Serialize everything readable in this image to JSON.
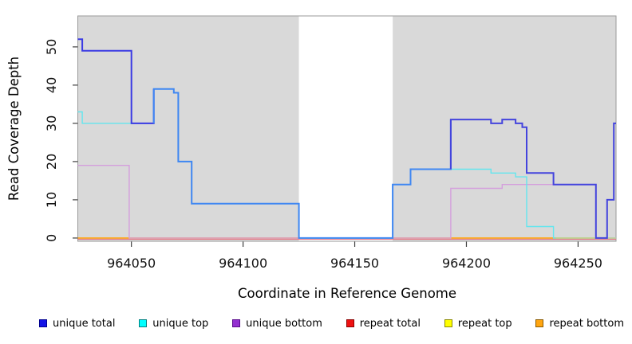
{
  "chart_data": {
    "type": "line",
    "subtype": "step-coverage",
    "title": "",
    "xlabel": "Coordinate in Reference Genome",
    "ylabel": "Read Coverage Depth",
    "xlim": [
      964026,
      964267
    ],
    "ylim": [
      -0.85,
      58.1
    ],
    "x_ticks": [
      964050,
      964100,
      964150,
      964200,
      964250
    ],
    "y_ticks": [
      0,
      10,
      20,
      30,
      40,
      50
    ],
    "grid": false,
    "plot_bg": "#d9d9d9",
    "plot_border": "#9a9a9a",
    "gap_region": {
      "from": 964125,
      "to": 964167,
      "color": "#ffffff"
    },
    "series": [
      {
        "name": "repeat total",
        "line_color": "#e46a78",
        "width": 1.2,
        "y_offset": 1.4,
        "points": [
          [
            964026,
            0
          ],
          [
            964267,
            0
          ]
        ]
      },
      {
        "name": "repeat top",
        "line_color": "#f2ea50",
        "width": 1.2,
        "points": [
          [
            964026,
            0
          ],
          [
            964267,
            0
          ]
        ]
      },
      {
        "name": "repeat bottom",
        "line_color": "#ffa519",
        "width": 1.6,
        "points": [
          [
            964026,
            0
          ],
          [
            964267,
            0
          ]
        ]
      },
      {
        "name": "unique bottom",
        "line_color": "#d49fdd",
        "width": 1.4,
        "points": [
          [
            964026,
            19
          ],
          [
            964049,
            0
          ],
          [
            964193,
            13
          ],
          [
            964216,
            14
          ],
          [
            964258,
            0
          ],
          [
            964267,
            0
          ]
        ]
      },
      {
        "name": "unique top",
        "line_color": "#63e6ee",
        "width": 1.4,
        "color_spans": [
          {
            "to": 964240,
            "color": "#63e6ee"
          },
          {
            "to": 964267,
            "color": "#abdcae"
          }
        ],
        "points": [
          [
            964026,
            33
          ],
          [
            964028,
            30
          ],
          [
            964060,
            39
          ],
          [
            964069,
            38
          ],
          [
            964071,
            20
          ],
          [
            964077,
            9
          ],
          [
            964125,
            0
          ],
          [
            964167,
            14
          ],
          [
            964175,
            18
          ],
          [
            964211,
            17
          ],
          [
            964222,
            16
          ],
          [
            964227,
            3
          ],
          [
            964239,
            0
          ],
          [
            964267,
            0
          ]
        ]
      },
      {
        "name": "unique total",
        "line_color": "#3a3ae4",
        "width": 2,
        "color_spans": [
          {
            "to": 964060,
            "color": "#3a3ae4"
          },
          {
            "to": 964193,
            "color": "#3f87f2"
          },
          {
            "to": 964267,
            "color": "#4444dd"
          }
        ],
        "points": [
          [
            964026,
            52
          ],
          [
            964028,
            49
          ],
          [
            964050,
            30
          ],
          [
            964060,
            39
          ],
          [
            964069,
            38
          ],
          [
            964071,
            20
          ],
          [
            964077,
            9
          ],
          [
            964125,
            0
          ],
          [
            964167,
            14
          ],
          [
            964175,
            18
          ],
          [
            964193,
            31
          ],
          [
            964211,
            30
          ],
          [
            964216,
            31
          ],
          [
            964222,
            30
          ],
          [
            964225,
            29
          ],
          [
            964227,
            17
          ],
          [
            964239,
            14
          ],
          [
            964258,
            0
          ],
          [
            964263,
            10
          ],
          [
            964266,
            30
          ],
          [
            964267,
            30
          ]
        ]
      }
    ]
  },
  "legend": {
    "items": [
      {
        "label": "unique total",
        "color": "#1414e6",
        "border": "#000090"
      },
      {
        "label": "unique top",
        "color": "#00ffff",
        "border": "#008080"
      },
      {
        "label": "unique bottom",
        "color": "#9430d0",
        "border": "#5a0a8c"
      },
      {
        "label": "repeat total",
        "color": "#ee1111",
        "border": "#8b0000"
      },
      {
        "label": "repeat top",
        "color": "#ffff00",
        "border": "#8a8a00"
      },
      {
        "label": "repeat bottom",
        "color": "#ffa510",
        "border": "#8a5a00"
      }
    ]
  },
  "axis_style": {
    "tick_color": "#404040",
    "label_color": "#111111"
  }
}
